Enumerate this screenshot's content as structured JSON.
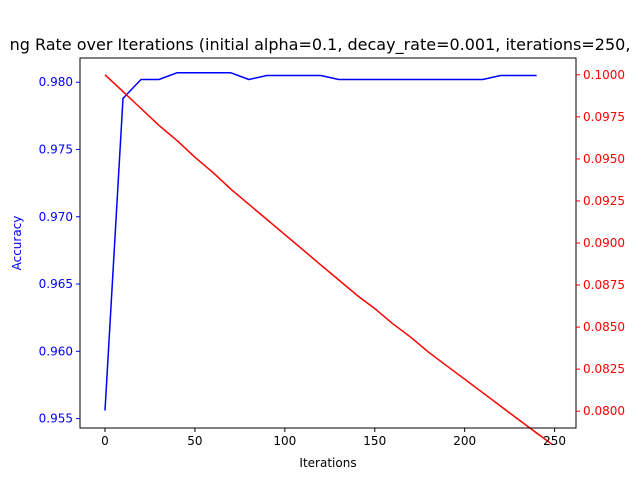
{
  "chart_data": {
    "type": "line",
    "title": "ng Rate over Iterations (initial alpha=0.1, decay_rate=0.001, iterations=250,",
    "xlabel": "Iterations",
    "ylabel_left": "Accuracy",
    "ylabel_right": "",
    "xlim": [
      -13.9,
      261.9
    ],
    "ylim_left": [
      0.9543,
      0.9818
    ],
    "ylim_right": [
      0.079,
      0.101
    ],
    "x_ticks": [
      0,
      50,
      100,
      150,
      200,
      250
    ],
    "x_tick_labels": [
      "0",
      "50",
      "100",
      "150",
      "200",
      "250"
    ],
    "y_left_ticks": [
      0.955,
      0.96,
      0.965,
      0.97,
      0.975,
      0.98
    ],
    "y_left_tick_labels": [
      "0.955",
      "0.960",
      "0.965",
      "0.970",
      "0.975",
      "0.980"
    ],
    "y_right_ticks": [
      0.08,
      0.0825,
      0.085,
      0.0875,
      0.09,
      0.0925,
      0.095,
      0.0975,
      0.1
    ],
    "y_right_tick_labels": [
      "0.0800",
      "0.0825",
      "0.0850",
      "0.0875",
      "0.0900",
      "0.0925",
      "0.0950",
      "0.0975",
      "0.1000"
    ],
    "grid": false,
    "colors": {
      "left_axis": "#0000ff",
      "right_axis": "#ff0000",
      "frame": "#000000"
    },
    "series": [
      {
        "axis": "left",
        "color": "#0000ff",
        "x": [
          0,
          10,
          20,
          30,
          40,
          50,
          60,
          70,
          80,
          90,
          100,
          110,
          120,
          130,
          140,
          150,
          160,
          170,
          180,
          190,
          200,
          210,
          220,
          230,
          240
        ],
        "values": [
          0.9556,
          0.9788,
          0.9802,
          0.9802,
          0.9807,
          0.9807,
          0.9807,
          0.9807,
          0.9802,
          0.9805,
          0.9805,
          0.9805,
          0.9805,
          0.9802,
          0.9802,
          0.9802,
          0.9802,
          0.9802,
          0.9802,
          0.9802,
          0.9802,
          0.9802,
          0.9805,
          0.9805,
          0.9805
        ]
      },
      {
        "axis": "right",
        "color": "#ff0000",
        "x": [
          0,
          10,
          20,
          30,
          40,
          50,
          60,
          70,
          80,
          90,
          100,
          110,
          120,
          130,
          140,
          150,
          160,
          170,
          180,
          190,
          200,
          210,
          220,
          230,
          240,
          249
        ],
        "values": [
          0.1,
          0.099,
          0.098,
          0.097,
          0.0961,
          0.0951,
          0.0942,
          0.0932,
          0.0923,
          0.0914,
          0.0905,
          0.0896,
          0.0887,
          0.0878,
          0.0869,
          0.0861,
          0.0852,
          0.0844,
          0.0835,
          0.0827,
          0.0819,
          0.0811,
          0.0803,
          0.0795,
          0.0787,
          0.078
        ]
      }
    ]
  }
}
